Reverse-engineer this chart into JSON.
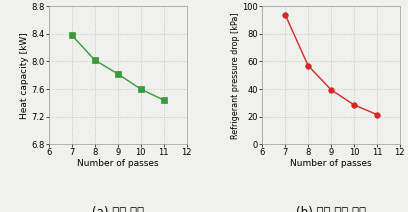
{
  "left": {
    "x": [
      7,
      8,
      9,
      10,
      11
    ],
    "y": [
      8.38,
      8.02,
      7.82,
      7.6,
      7.44
    ],
    "color": "#3a9a3a",
    "marker": "s",
    "xlabel": "Number of passes",
    "ylabel": "Heat capacity [kW]",
    "xlim": [
      6,
      12
    ],
    "ylim": [
      6.8,
      8.8
    ],
    "yticks": [
      6.8,
      7.2,
      7.6,
      8.0,
      8.4,
      8.8
    ],
    "xticks": [
      6,
      7,
      8,
      9,
      10,
      11,
      12
    ],
    "caption": "(a) 냉방 능력"
  },
  "right": {
    "x": [
      7,
      8,
      9,
      10,
      11
    ],
    "y": [
      94,
      57,
      39.5,
      28.5,
      21.5
    ],
    "color": "#d62728",
    "marker": "o",
    "xlabel": "Number of passes",
    "ylabel": "Refrigerant pressure drop [kPa]",
    "xlim": [
      6,
      12
    ],
    "ylim": [
      0,
      100
    ],
    "yticks": [
      0,
      20,
      40,
      60,
      80,
      100
    ],
    "xticks": [
      6,
      7,
      8,
      9,
      10,
      11,
      12
    ],
    "caption": "(b) 냉매 압력 손실"
  },
  "grid_color": "#bbbbbb",
  "grid_linestyle": ":",
  "bg_color": "#f0f0ec",
  "markersize": 4,
  "linewidth": 1.0,
  "caption_fontsize": 8.5,
  "axis_label_fontsize": 6.5,
  "tick_fontsize": 6,
  "ylabel_fontsize_right": 5.8
}
